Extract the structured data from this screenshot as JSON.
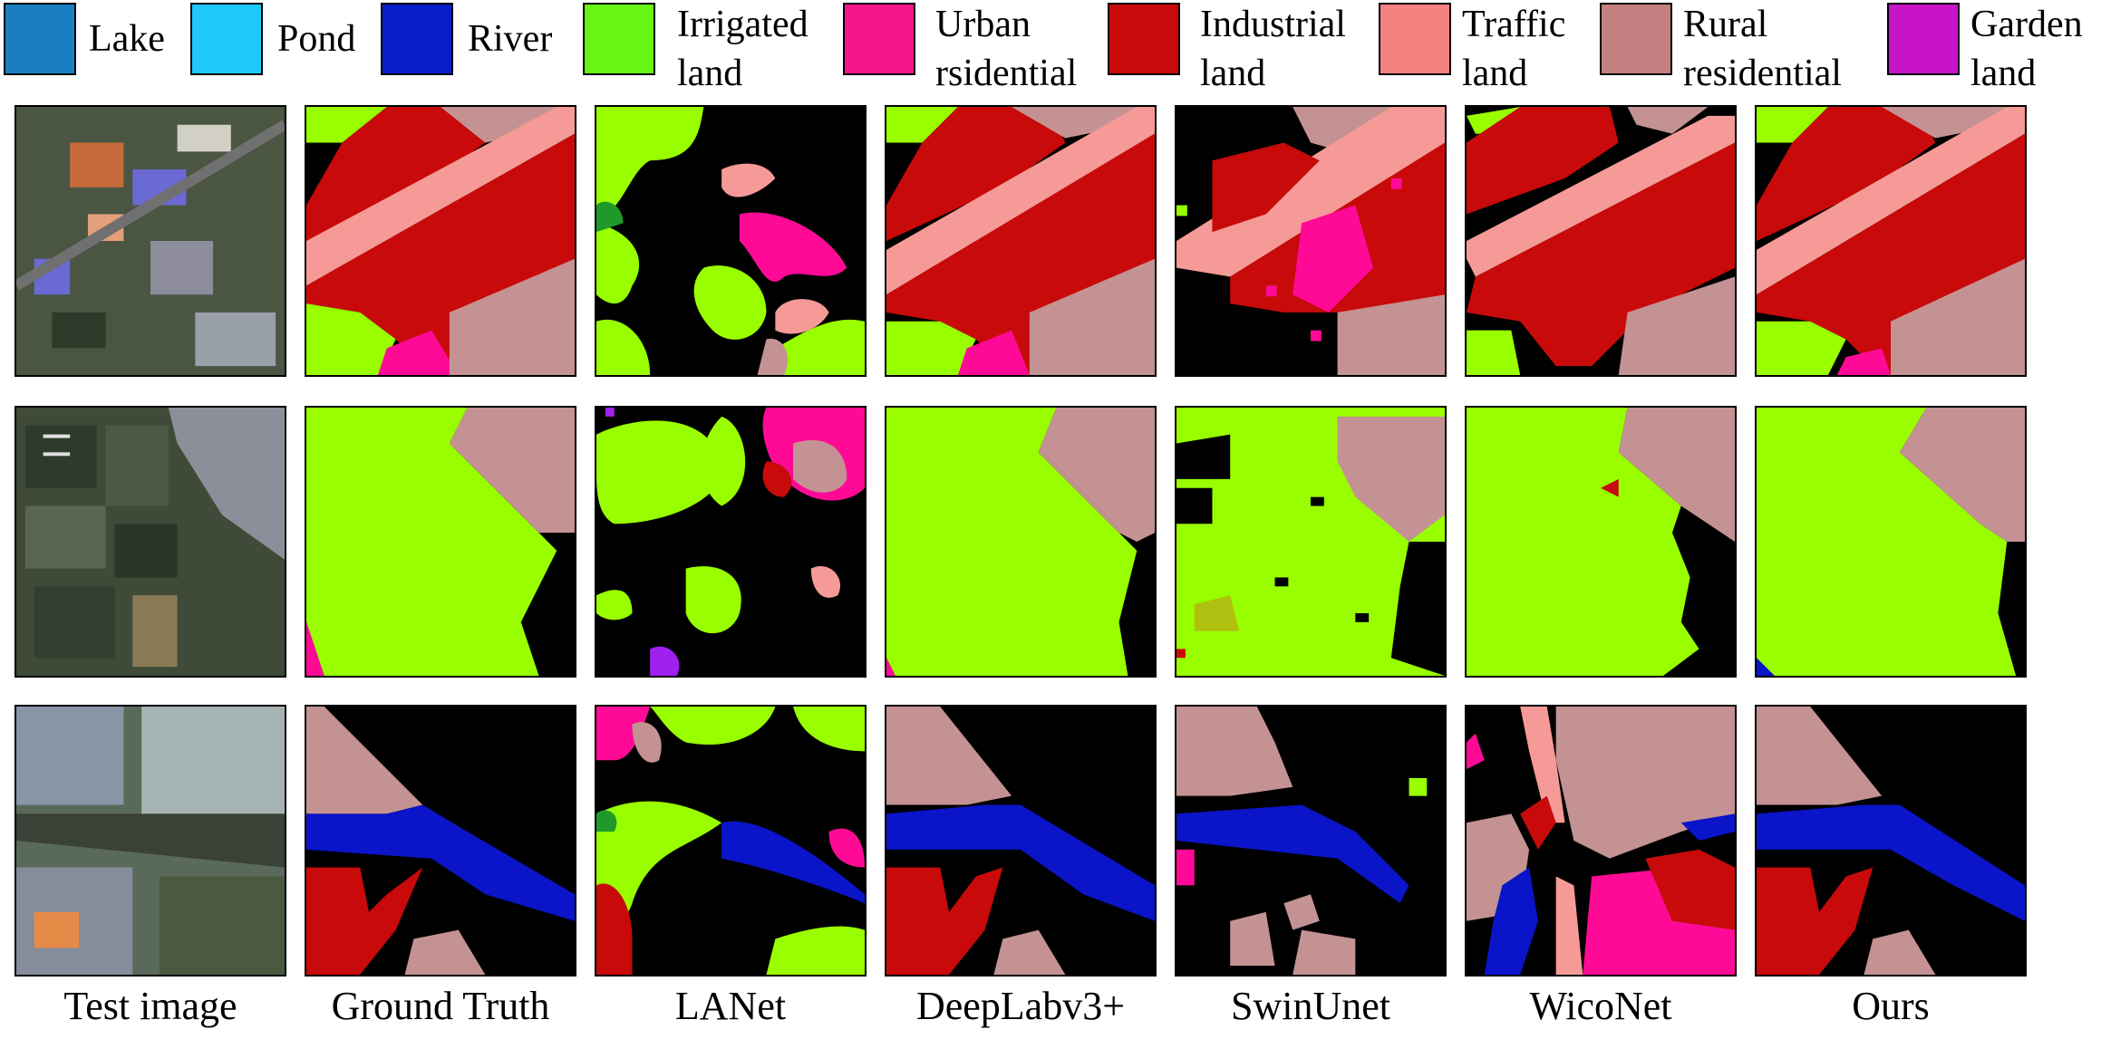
{
  "legend": [
    {
      "label": "Lake",
      "color": "#1a7fc0"
    },
    {
      "label": "Pond",
      "color": "#1ec8f8"
    },
    {
      "label": "River",
      "color": "#0a1ec8"
    },
    {
      "label": "Irrigated\nland",
      "color": "#66f514"
    },
    {
      "label": "Urban\nrsidential",
      "color": "#f5148c"
    },
    {
      "label": "Industrial\nland",
      "color": "#c80a0a"
    },
    {
      "label": "Traffic\nland",
      "color": "#f58080"
    },
    {
      "label": "Rural\nresidential",
      "color": "#c48080"
    },
    {
      "label": "Garden\nland",
      "color": "#c814c8"
    }
  ],
  "columns": [
    "Test image",
    "Ground Truth",
    "LANet",
    "DeepLabv3+",
    "SwinUnet",
    "WicoNet",
    "Ours"
  ],
  "colors": {
    "irrigated": "#99ff00",
    "urban": "#ff0a96",
    "industrial": "#c80a0a",
    "traffic": "#f59a96",
    "rural": "#c49292",
    "river": "#0a14c8",
    "garden": "#a020f0",
    "background": "#000000"
  }
}
